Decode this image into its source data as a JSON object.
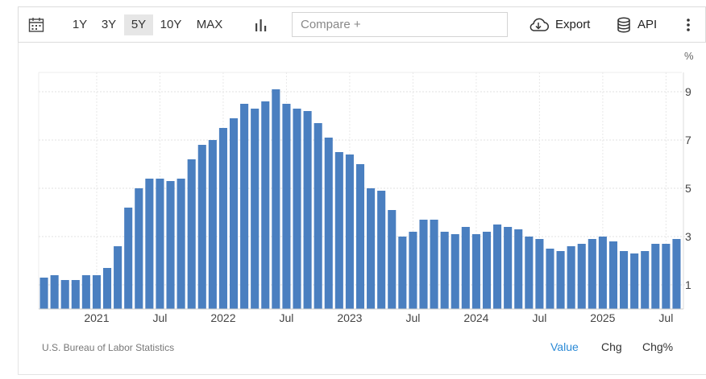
{
  "toolbar": {
    "calendar_icon": "calendar-icon",
    "ranges": [
      "1Y",
      "3Y",
      "5Y",
      "10Y",
      "MAX"
    ],
    "active_range": "5Y",
    "chart_type_icon": "bar-chart-icon",
    "compare_placeholder": "Compare +",
    "export_label": "Export",
    "export_icon": "cloud-download-icon",
    "api_label": "API",
    "api_icon": "database-icon",
    "more_icon": "vertical-ellipsis-icon"
  },
  "chart_data": {
    "type": "bar",
    "unit": "%",
    "x_tick_labels": [
      "2021",
      "Jul",
      "2022",
      "Jul",
      "2023",
      "Jul",
      "2024",
      "Jul",
      "2025",
      "Jul"
    ],
    "y_ticks": [
      1,
      3,
      5,
      7,
      9
    ],
    "ylim": [
      0,
      9.8
    ],
    "grid": true,
    "bar_color": "#4a7fc0",
    "categories": [
      "2020-08",
      "2020-09",
      "2020-10",
      "2020-11",
      "2020-12",
      "2021-01",
      "2021-02",
      "2021-03",
      "2021-04",
      "2021-05",
      "2021-06",
      "2021-07",
      "2021-08",
      "2021-09",
      "2021-10",
      "2021-11",
      "2021-12",
      "2022-01",
      "2022-02",
      "2022-03",
      "2022-04",
      "2022-05",
      "2022-06",
      "2022-07",
      "2022-08",
      "2022-09",
      "2022-10",
      "2022-11",
      "2022-12",
      "2023-01",
      "2023-02",
      "2023-03",
      "2023-04",
      "2023-05",
      "2023-06",
      "2023-07",
      "2023-08",
      "2023-09",
      "2023-10",
      "2023-11",
      "2023-12",
      "2024-01",
      "2024-02",
      "2024-03",
      "2024-04",
      "2024-05",
      "2024-06",
      "2024-07",
      "2024-08",
      "2024-09",
      "2024-10",
      "2024-11",
      "2024-12",
      "2025-01",
      "2025-02",
      "2025-03",
      "2025-04",
      "2025-05",
      "2025-06",
      "2025-07",
      "2025-08"
    ],
    "values": [
      1.3,
      1.4,
      1.2,
      1.2,
      1.4,
      1.4,
      1.7,
      2.6,
      4.2,
      5.0,
      5.4,
      5.4,
      5.3,
      5.4,
      6.2,
      6.8,
      7.0,
      7.5,
      7.9,
      8.5,
      8.3,
      8.6,
      9.1,
      8.5,
      8.3,
      8.2,
      7.7,
      7.1,
      6.5,
      6.4,
      6.0,
      5.0,
      4.9,
      4.1,
      3.0,
      3.2,
      3.7,
      3.7,
      3.2,
      3.1,
      3.4,
      3.1,
      3.2,
      3.5,
      3.4,
      3.3,
      3.0,
      2.9,
      2.5,
      2.4,
      2.6,
      2.7,
      2.9,
      3.0,
      2.8,
      2.4,
      2.3,
      2.4,
      2.7,
      2.7,
      2.9
    ]
  },
  "footer": {
    "source": "U.S. Bureau of Labor Statistics",
    "tabs": [
      "Value",
      "Chg",
      "Chg%"
    ],
    "active_tab": "Value"
  }
}
